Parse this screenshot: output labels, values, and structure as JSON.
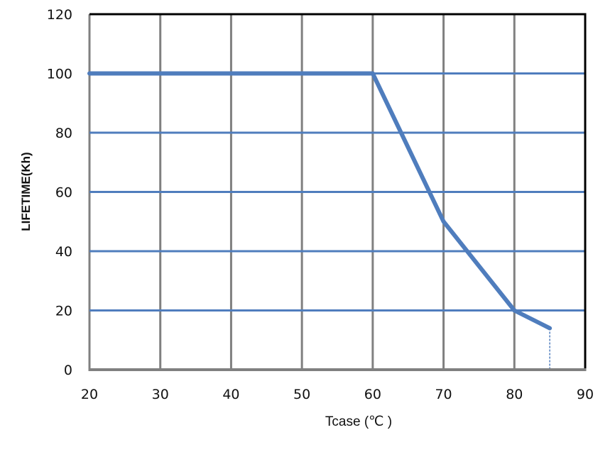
{
  "chart_data": {
    "type": "line",
    "title": "",
    "xlabel": "Tcase (℃ )",
    "ylabel": "LIFETIME(Kh)",
    "xlim": [
      20,
      90
    ],
    "ylim": [
      0,
      120
    ],
    "x_ticks": [
      20,
      30,
      40,
      50,
      60,
      70,
      80,
      90
    ],
    "y_ticks": [
      0,
      20,
      40,
      60,
      80,
      100,
      120
    ],
    "grid": true,
    "legend": null,
    "series": [
      {
        "name": "Lifetime",
        "color": "#4F7DBD",
        "x": [
          20,
          60,
          70,
          80,
          85
        ],
        "values": [
          100,
          100,
          50,
          20,
          14
        ]
      }
    ],
    "annotations": [
      {
        "type": "dashed-drop-line",
        "x": 85,
        "from_y": 14,
        "to_y": 0,
        "color": "#4F7DBD"
      }
    ]
  },
  "colors": {
    "line": "#4F7DBD",
    "h_grid": "#4F7DBD",
    "v_grid": "#808080",
    "frame_top_right": "#000000",
    "axis": "#808080"
  }
}
